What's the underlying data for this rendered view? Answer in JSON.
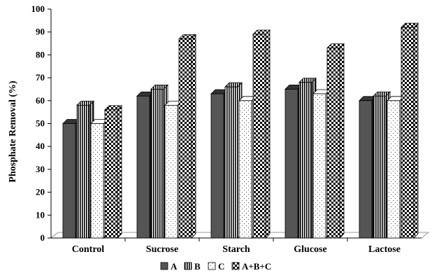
{
  "chart_data": {
    "type": "bar",
    "style": "3d-clustered",
    "categories": [
      "Control",
      "Sucrose",
      "Starch",
      "Glucose",
      "Lactose"
    ],
    "series": [
      {
        "name": "A",
        "values": [
          50,
          62,
          63,
          65,
          60
        ],
        "pattern": "solid",
        "color": "#555555"
      },
      {
        "name": "B",
        "values": [
          58,
          65,
          66,
          68,
          62
        ],
        "pattern": "vertical-lines",
        "color": "#000000"
      },
      {
        "name": "C",
        "values": [
          50,
          58,
          60,
          63,
          60
        ],
        "pattern": "dots",
        "color": "#ffffff"
      },
      {
        "name": "A+B+C",
        "values": [
          56,
          87,
          89,
          83,
          92
        ],
        "pattern": "checkerboard",
        "color": "#000000"
      }
    ],
    "title": "",
    "xlabel": "",
    "ylabel": "Phosphate Removal (%)",
    "ylim": [
      0,
      100
    ],
    "yticks": [
      0,
      10,
      20,
      30,
      40,
      50,
      60,
      70,
      80,
      90,
      100
    ],
    "grid": false,
    "legend_position": "bottom-center"
  }
}
